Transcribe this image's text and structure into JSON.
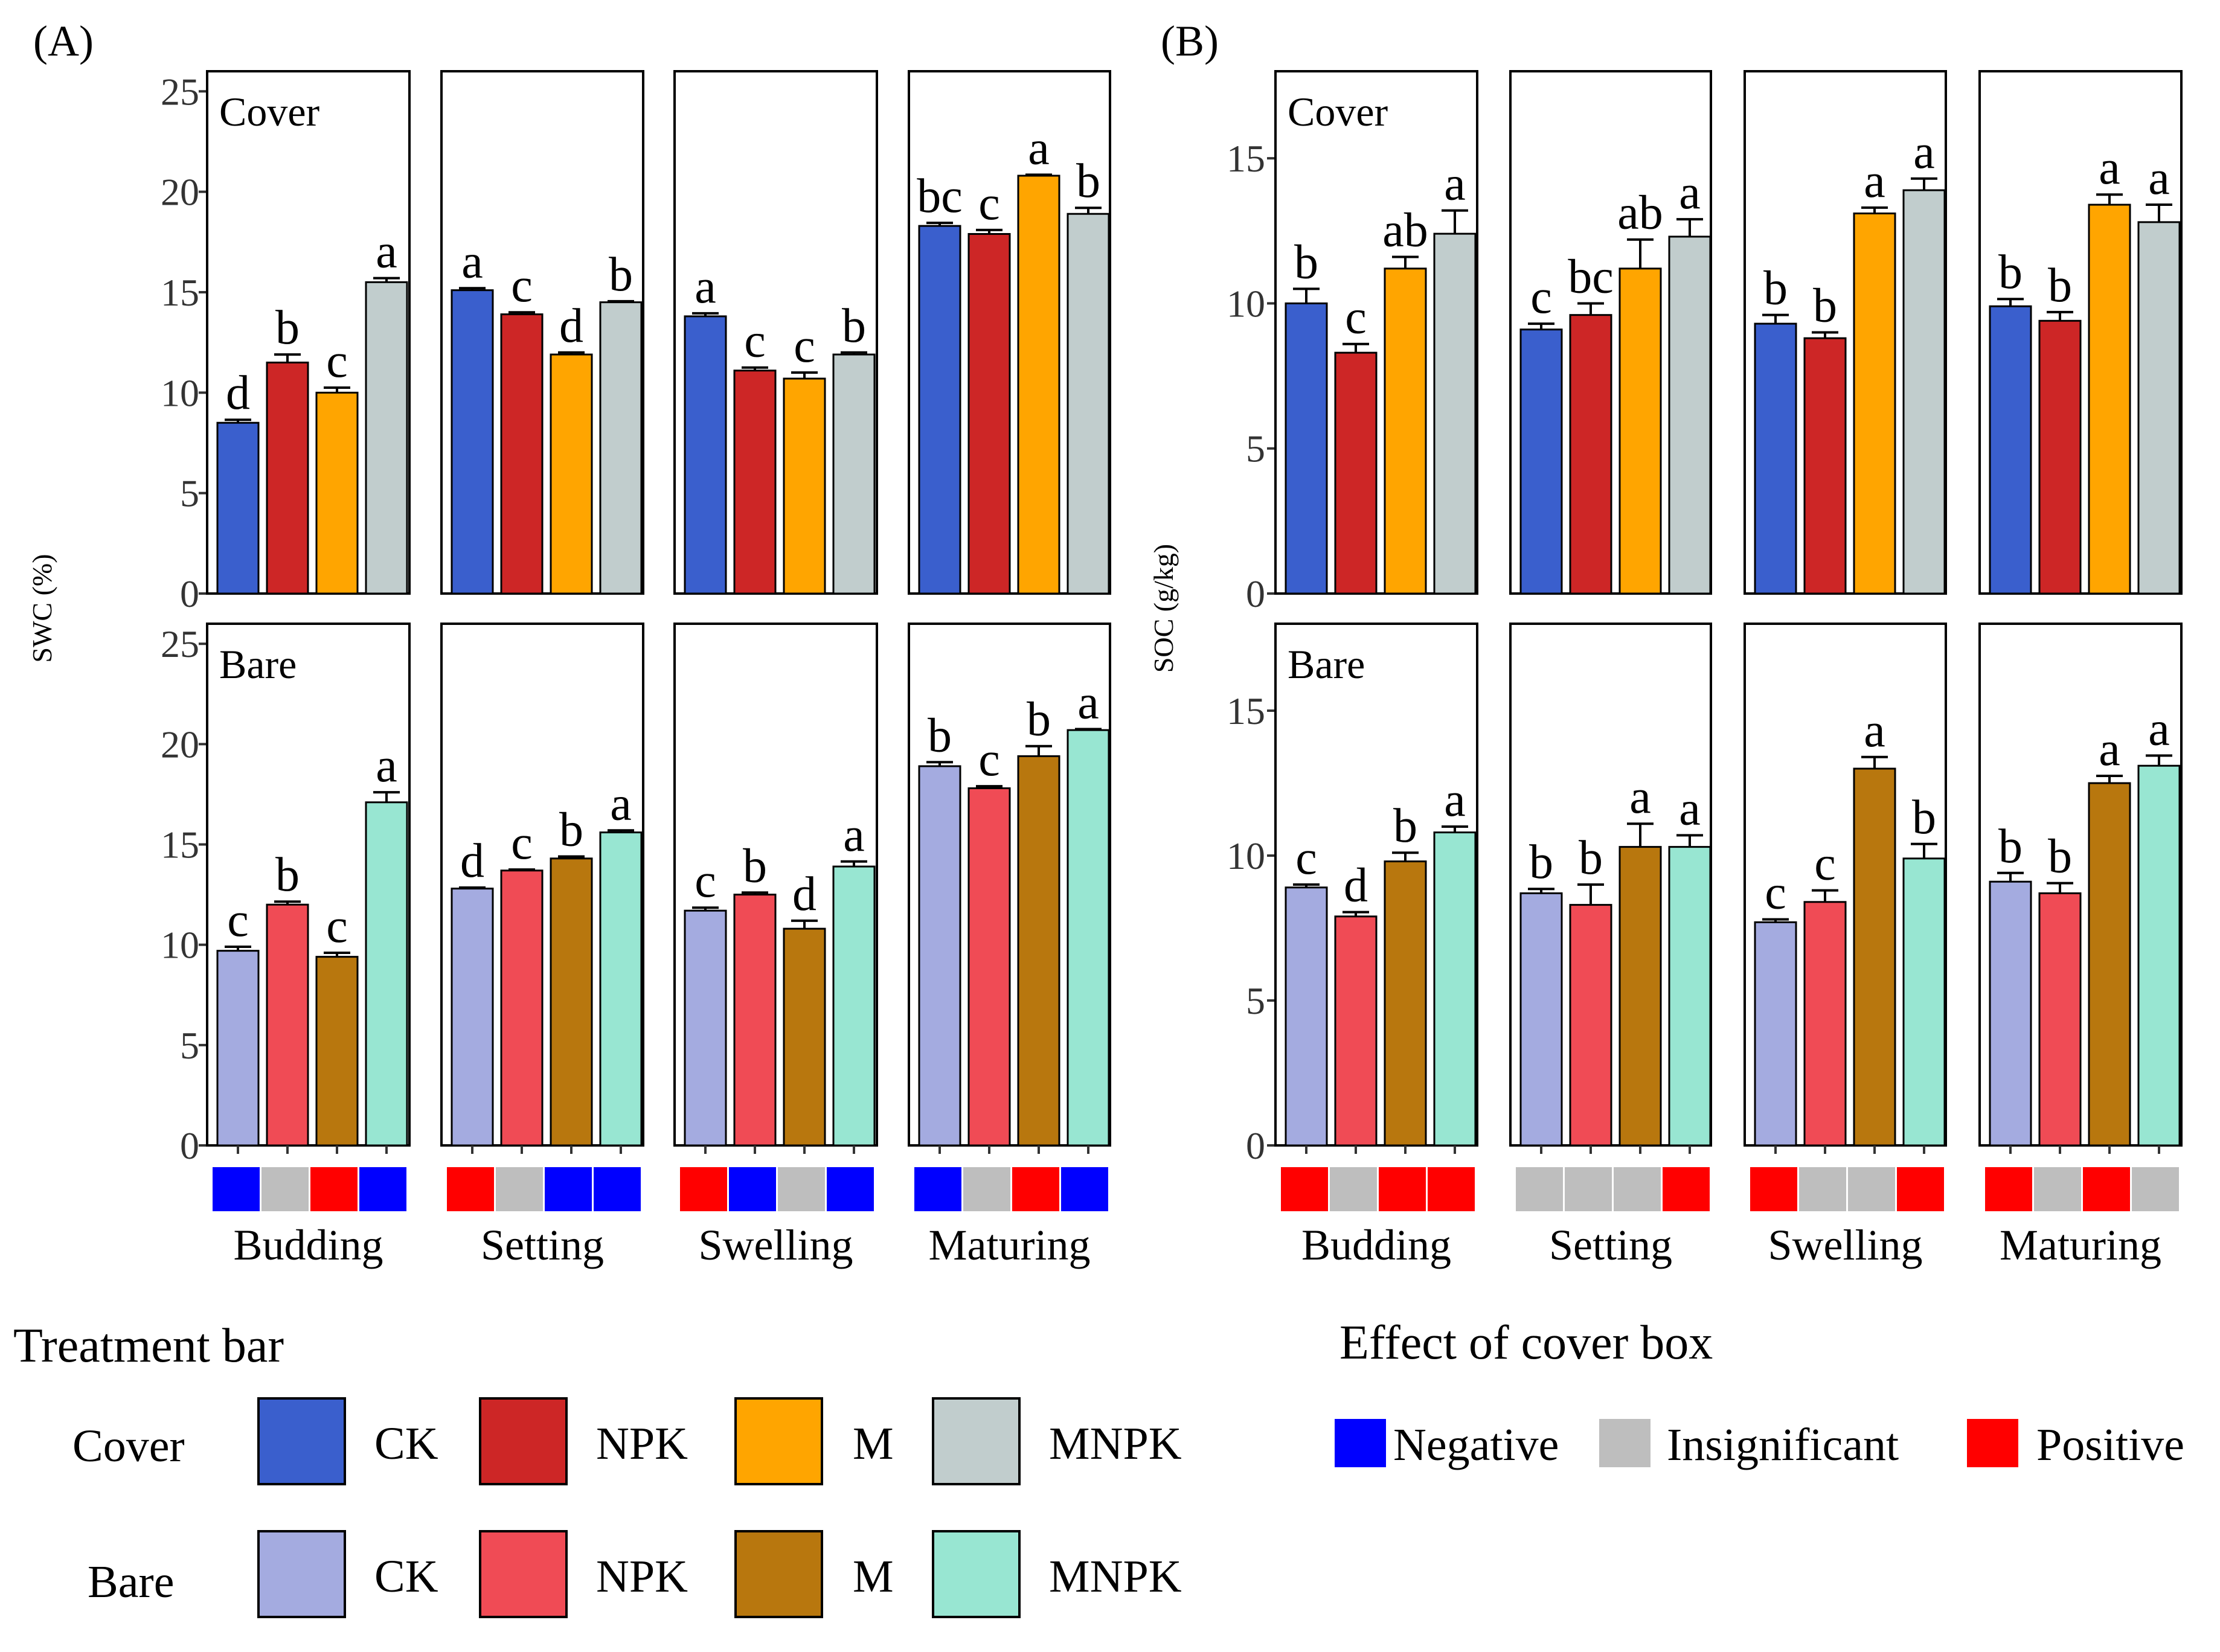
{
  "legend": {
    "treatment_title": "Treatment bar",
    "rows": [
      {
        "label": "Cover",
        "items": [
          {
            "name": "CK",
            "color": "#3a5fcd"
          },
          {
            "name": "NPK",
            "color": "#cd2626"
          },
          {
            "name": "M",
            "color": "#ffa500"
          },
          {
            "name": "MNPK",
            "color": "#c1cdcd"
          }
        ]
      },
      {
        "label": "Bare",
        "items": [
          {
            "name": "CK",
            "color": "#a4abe0"
          },
          {
            "name": "NPK",
            "color": "#f04b55"
          },
          {
            "name": "M",
            "color": "#b8770e"
          },
          {
            "name": "MNPK",
            "color": "#98e6d2"
          }
        ]
      }
    ],
    "effect_title": "Effect of cover box",
    "effect_items": [
      {
        "name": "Negative",
        "color": "#0000ff"
      },
      {
        "name": "Insignificant",
        "color": "#bebebe"
      },
      {
        "name": "Positive",
        "color": "#ff0000"
      }
    ]
  },
  "chart_data": [
    {
      "type": "bar",
      "panel_label": "(A)",
      "ylabel": "SWC (%)",
      "ylim": [
        0,
        26
      ],
      "yticks": [
        0,
        5,
        10,
        15,
        20,
        25
      ],
      "groups": [
        "Budding",
        "Setting",
        "Swelling",
        "Maturing"
      ],
      "treatments": [
        "CK",
        "NPK",
        "M",
        "MNPK"
      ],
      "rows": [
        {
          "name": "Cover",
          "values": [
            [
              8.5,
              11.5,
              10.0,
              15.5
            ],
            [
              15.1,
              13.9,
              11.9,
              14.5
            ],
            [
              13.8,
              11.1,
              10.7,
              11.9
            ],
            [
              18.3,
              17.9,
              20.8,
              18.9
            ]
          ],
          "errors": [
            [
              0.15,
              0.4,
              0.25,
              0.2
            ],
            [
              0.1,
              0.1,
              0.1,
              0.05
            ],
            [
              0.15,
              0.15,
              0.3,
              0.1
            ],
            [
              0.15,
              0.2,
              0.05,
              0.3
            ]
          ],
          "letters": [
            [
              "d",
              "b",
              "c",
              "a"
            ],
            [
              "a",
              "c",
              "d",
              "b"
            ],
            [
              "a",
              "c",
              "c",
              "b"
            ],
            [
              "bc",
              "c",
              "a",
              "b"
            ]
          ]
        },
        {
          "name": "Bare",
          "values": [
            [
              9.7,
              12.0,
              9.4,
              17.1
            ],
            [
              12.8,
              13.7,
              14.3,
              15.6
            ],
            [
              11.7,
              12.5,
              10.8,
              13.9
            ],
            [
              18.9,
              17.8,
              19.4,
              20.7
            ]
          ],
          "errors": [
            [
              0.2,
              0.15,
              0.2,
              0.5
            ],
            [
              0.05,
              0.05,
              0.1,
              0.1
            ],
            [
              0.15,
              0.1,
              0.4,
              0.25
            ],
            [
              0.2,
              0.1,
              0.5,
              0.05
            ]
          ],
          "letters": [
            [
              "c",
              "b",
              "c",
              "a"
            ],
            [
              "d",
              "c",
              "b",
              "a"
            ],
            [
              "c",
              "b",
              "d",
              "a"
            ],
            [
              "b",
              "c",
              "b",
              "a"
            ]
          ]
        }
      ],
      "effects": [
        [
          "Negative",
          "Insignificant",
          "Positive",
          "Negative"
        ],
        [
          "Positive",
          "Insignificant",
          "Negative",
          "Negative"
        ],
        [
          "Positive",
          "Negative",
          "Insignificant",
          "Negative"
        ],
        [
          "Negative",
          "Insignificant",
          "Positive",
          "Negative"
        ]
      ]
    },
    {
      "type": "bar",
      "panel_label": "(B)",
      "ylabel": "SOC (g/kg)",
      "ylim": [
        0,
        18
      ],
      "yticks": [
        0,
        5,
        10,
        15
      ],
      "groups": [
        "Budding",
        "Setting",
        "Swelling",
        "Maturing"
      ],
      "treatments": [
        "CK",
        "NPK",
        "M",
        "MNPK"
      ],
      "rows": [
        {
          "name": "Cover",
          "values": [
            [
              10.0,
              8.3,
              11.2,
              12.4
            ],
            [
              9.1,
              9.6,
              11.2,
              12.3
            ],
            [
              9.3,
              8.8,
              13.1,
              13.9
            ],
            [
              9.9,
              9.4,
              13.4,
              12.8
            ]
          ],
          "errors": [
            [
              0.5,
              0.3,
              0.4,
              0.8
            ],
            [
              0.2,
              0.4,
              1.0,
              0.6
            ],
            [
              0.3,
              0.2,
              0.2,
              0.4
            ],
            [
              0.25,
              0.3,
              0.35,
              0.6
            ]
          ],
          "letters": [
            [
              "b",
              "c",
              "ab",
              "a"
            ],
            [
              "c",
              "bc",
              "ab",
              "a"
            ],
            [
              "b",
              "b",
              "a",
              "a"
            ],
            [
              "b",
              "b",
              "a",
              "a"
            ]
          ]
        },
        {
          "name": "Bare",
          "values": [
            [
              8.9,
              7.9,
              9.8,
              10.8
            ],
            [
              8.7,
              8.3,
              10.3,
              10.3
            ],
            [
              7.7,
              8.4,
              13.0,
              9.9
            ],
            [
              9.1,
              8.7,
              12.5,
              13.1
            ]
          ],
          "errors": [
            [
              0.1,
              0.15,
              0.3,
              0.2
            ],
            [
              0.15,
              0.7,
              0.8,
              0.4
            ],
            [
              0.1,
              0.4,
              0.4,
              0.5
            ],
            [
              0.3,
              0.35,
              0.25,
              0.35
            ]
          ],
          "letters": [
            [
              "c",
              "d",
              "b",
              "a"
            ],
            [
              "b",
              "b",
              "a",
              "a"
            ],
            [
              "c",
              "c",
              "a",
              "b"
            ],
            [
              "b",
              "b",
              "a",
              "a"
            ]
          ]
        }
      ],
      "effects": [
        [
          "Positive",
          "Insignificant",
          "Positive",
          "Positive"
        ],
        [
          "Insignificant",
          "Insignificant",
          "Insignificant",
          "Positive"
        ],
        [
          "Positive",
          "Insignificant",
          "Insignificant",
          "Positive"
        ],
        [
          "Positive",
          "Insignificant",
          "Positive",
          "Insignificant"
        ]
      ]
    }
  ]
}
